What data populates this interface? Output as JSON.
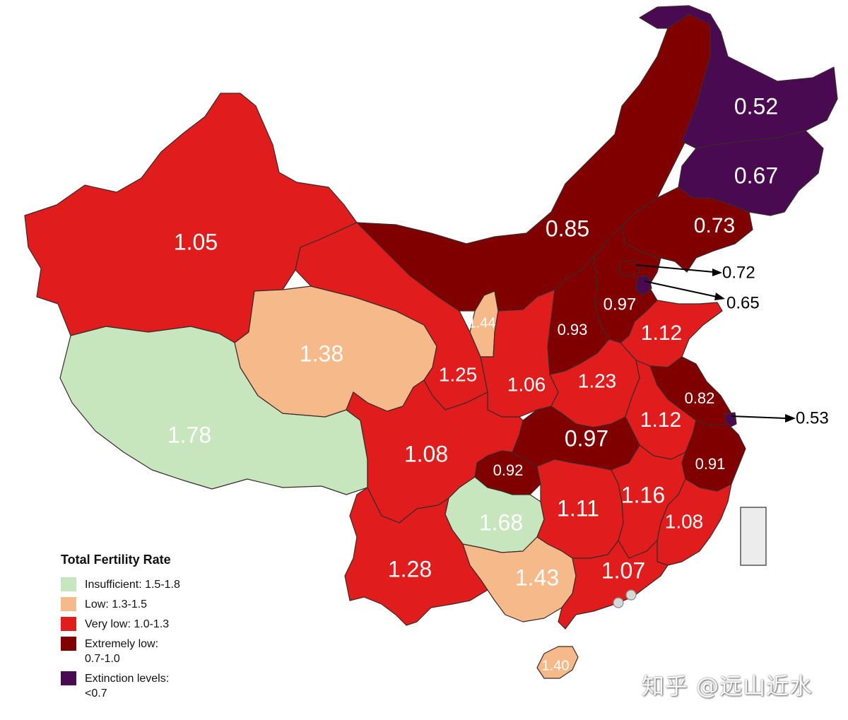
{
  "legend": {
    "title": "Total Fertility Rate",
    "items": [
      {
        "label": "Insufficient: 1.5-1.8",
        "color": "#c8e6be"
      },
      {
        "label": "Low: 1.3-1.5",
        "color": "#f6b98a"
      },
      {
        "label": "Very low: 1.0-1.3",
        "color": "#e01c1c"
      },
      {
        "label": "Extremely low:\n0.7-1.0",
        "color": "#800000"
      },
      {
        "label": "Extinction levels:\n<0.7",
        "color": "#4a0a52"
      }
    ]
  },
  "regions": [
    {
      "id": "xinjiang",
      "value": "1.05",
      "category": "Very low"
    },
    {
      "id": "tibet",
      "value": "1.78",
      "category": "Insufficient"
    },
    {
      "id": "qinghai",
      "value": "1.38",
      "category": "Low"
    },
    {
      "id": "gansu",
      "value": "1.25",
      "category": "Very low"
    },
    {
      "id": "ningxia",
      "value": "1.44",
      "category": "Low"
    },
    {
      "id": "inner-mongolia",
      "value": "0.85",
      "category": "Extremely low"
    },
    {
      "id": "heilongjiang",
      "value": "0.52",
      "category": "Extinction levels"
    },
    {
      "id": "jilin",
      "value": "0.67",
      "category": "Extinction levels"
    },
    {
      "id": "liaoning",
      "value": "0.73",
      "category": "Extremely low"
    },
    {
      "id": "beijing",
      "value": "0.72",
      "category": "Extremely low"
    },
    {
      "id": "tianjin",
      "value": "0.65",
      "category": "Extinction levels"
    },
    {
      "id": "hebei",
      "value": "0.97",
      "category": "Extremely low"
    },
    {
      "id": "shanxi",
      "value": "0.93",
      "category": "Extremely low"
    },
    {
      "id": "shandong",
      "value": "1.12",
      "category": "Very low"
    },
    {
      "id": "shaanxi",
      "value": "1.06",
      "category": "Very low"
    },
    {
      "id": "henan",
      "value": "1.23",
      "category": "Very low"
    },
    {
      "id": "jiangsu",
      "value": "0.82",
      "category": "Extremely low"
    },
    {
      "id": "shanghai",
      "value": "0.53",
      "category": "Extinction levels"
    },
    {
      "id": "anhui",
      "value": "1.12",
      "category": "Very low"
    },
    {
      "id": "hubei",
      "value": "0.97",
      "category": "Extremely low"
    },
    {
      "id": "sichuan",
      "value": "1.08",
      "category": "Very low"
    },
    {
      "id": "chongqing",
      "value": "0.92",
      "category": "Extremely low"
    },
    {
      "id": "zhejiang",
      "value": "0.91",
      "category": "Extremely low"
    },
    {
      "id": "guizhou",
      "value": "1.68",
      "category": "Insufficient"
    },
    {
      "id": "hunan",
      "value": "1.11",
      "category": "Very low"
    },
    {
      "id": "jiangxi",
      "value": "1.16",
      "category": "Very low"
    },
    {
      "id": "fujian",
      "value": "1.08",
      "category": "Very low"
    },
    {
      "id": "yunnan",
      "value": "1.28",
      "category": "Very low"
    },
    {
      "id": "guangxi",
      "value": "1.43",
      "category": "Low"
    },
    {
      "id": "guangdong",
      "value": "1.07",
      "category": "Very low"
    },
    {
      "id": "hainan",
      "value": "1.40",
      "category": "Low"
    }
  ],
  "watermark": "知乎 @远山近水"
}
